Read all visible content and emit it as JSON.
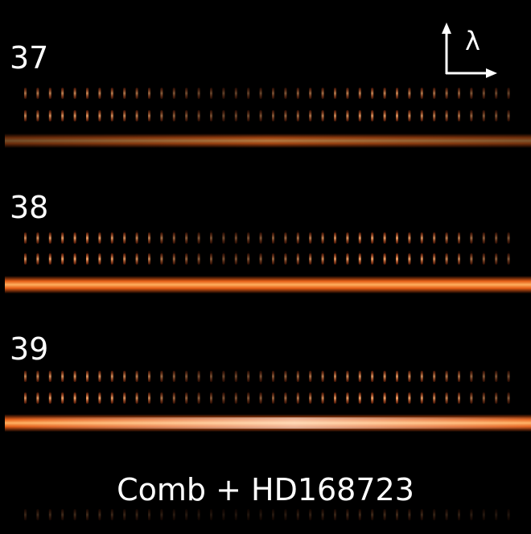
{
  "orders": [
    {
      "label": "37"
    },
    {
      "label": "38"
    },
    {
      "label": "39"
    }
  ],
  "axis_label": "λ",
  "caption": "Comb + HD168723"
}
